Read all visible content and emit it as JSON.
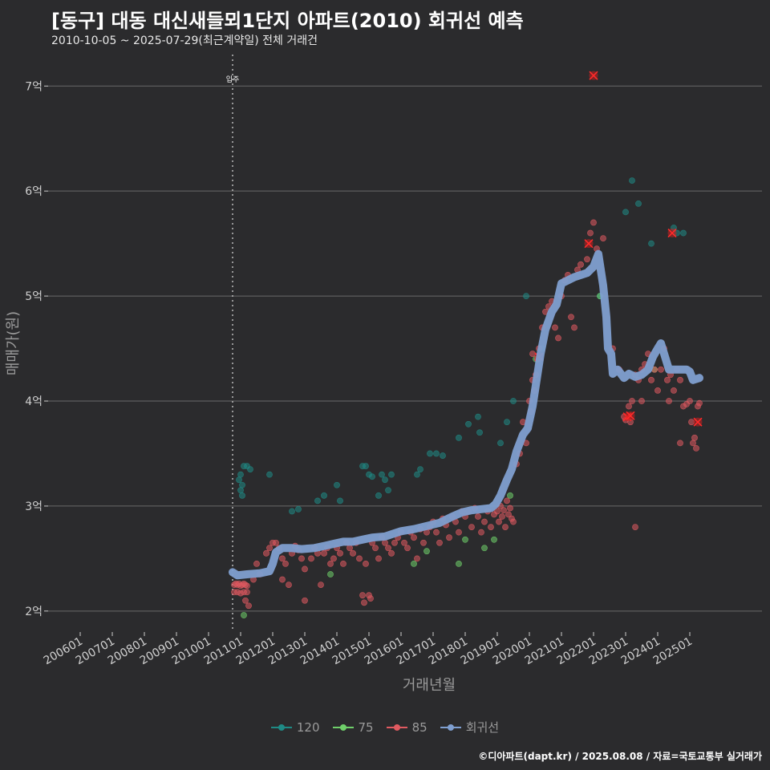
{
  "header": {
    "title": "[동구] 대동 대신새들뫼1단지 아파트(2010) 회귀선 예측",
    "subtitle": "2010-10-05 ~ 2025-07-29(최근계약일) 전체 거래건"
  },
  "caption": "©디아파트(dapt.kr) / 2025.08.08 / 자료=국토교통부 실거래가",
  "colors": {
    "background": "#2b2b2d",
    "grid": "#6a6a6a",
    "s120": "#1f8a85",
    "s75": "#6fcf6a",
    "s85": "#e05a60",
    "regression": "#7f9fd0",
    "highlight": "#cc1f1f"
  },
  "chart_data": {
    "type": "scatter",
    "title": "[동구] 대동 대신새들뫼1단지 아파트(2010) 회귀선 예측",
    "xlabel": "거래년월",
    "ylabel": "매매가(원)",
    "ylim": [
      1.8,
      7.3
    ],
    "y_ticks": [
      2,
      3,
      4,
      5,
      6,
      7
    ],
    "y_tick_labels": [
      "2억",
      "3억",
      "4억",
      "5억",
      "6억",
      "7억"
    ],
    "x_ticks": [
      "200601",
      "200701",
      "200801",
      "200901",
      "201001",
      "201101",
      "201201",
      "201301",
      "201401",
      "201501",
      "201601",
      "201701",
      "201801",
      "201901",
      "202001",
      "202101",
      "202201",
      "202301",
      "202401",
      "202501"
    ],
    "x_range": [
      2005.0,
      2027.25
    ],
    "annotation": {
      "label": "입주",
      "x": 2010.75
    },
    "legend": [
      "120",
      "75",
      "85",
      "회귀선"
    ],
    "series": [
      {
        "name": "120",
        "points": [
          [
            2010.95,
            3.25
          ],
          [
            2011.0,
            3.3
          ],
          [
            2011.05,
            3.2
          ],
          [
            2011.1,
            3.38
          ],
          [
            2011.2,
            3.38
          ],
          [
            2011.3,
            3.35
          ],
          [
            2011.0,
            3.15
          ],
          [
            2011.05,
            3.1
          ],
          [
            2011.9,
            3.3
          ],
          [
            2012.6,
            2.95
          ],
          [
            2012.8,
            2.97
          ],
          [
            2013.4,
            3.05
          ],
          [
            2013.6,
            3.1
          ],
          [
            2014.0,
            3.2
          ],
          [
            2014.1,
            3.05
          ],
          [
            2014.8,
            3.38
          ],
          [
            2014.9,
            3.38
          ],
          [
            2015.0,
            3.3
          ],
          [
            2015.1,
            3.28
          ],
          [
            2015.3,
            3.1
          ],
          [
            2015.4,
            3.3
          ],
          [
            2015.5,
            3.25
          ],
          [
            2015.6,
            3.15
          ],
          [
            2015.7,
            3.3
          ],
          [
            2016.5,
            3.3
          ],
          [
            2016.6,
            3.35
          ],
          [
            2016.9,
            3.5
          ],
          [
            2017.1,
            3.5
          ],
          [
            2017.3,
            3.48
          ],
          [
            2017.8,
            3.65
          ],
          [
            2018.1,
            3.78
          ],
          [
            2018.4,
            3.85
          ],
          [
            2018.45,
            3.7
          ],
          [
            2019.1,
            3.6
          ],
          [
            2019.3,
            3.8
          ],
          [
            2019.5,
            4.0
          ],
          [
            2019.9,
            5.0
          ],
          [
            2020.3,
            4.4
          ],
          [
            2020.4,
            4.5
          ],
          [
            2022.2,
            5.0
          ],
          [
            2023.0,
            5.8
          ],
          [
            2023.2,
            6.1
          ],
          [
            2023.4,
            5.88
          ],
          [
            2023.8,
            5.5
          ],
          [
            2024.5,
            5.65
          ],
          [
            2024.6,
            5.6
          ],
          [
            2024.8,
            5.6
          ]
        ]
      },
      {
        "name": "75",
        "points": [
          [
            2011.1,
            1.96
          ],
          [
            2013.8,
            2.35
          ],
          [
            2016.4,
            2.45
          ],
          [
            2016.8,
            2.57
          ],
          [
            2017.8,
            2.45
          ],
          [
            2018.0,
            2.68
          ],
          [
            2018.6,
            2.6
          ],
          [
            2018.9,
            2.68
          ],
          [
            2019.4,
            3.1
          ],
          [
            2020.2,
            4.4
          ],
          [
            2022.2,
            5.0
          ],
          [
            2023.9,
            4.3
          ]
        ]
      },
      {
        "name": "85",
        "points": [
          [
            2010.8,
            2.25
          ],
          [
            2010.85,
            2.26
          ],
          [
            2010.9,
            2.25
          ],
          [
            2010.95,
            2.26
          ],
          [
            2011.0,
            2.24
          ],
          [
            2011.05,
            2.25
          ],
          [
            2011.1,
            2.26
          ],
          [
            2011.15,
            2.25
          ],
          [
            2011.2,
            2.24
          ],
          [
            2010.8,
            2.18
          ],
          [
            2010.9,
            2.18
          ],
          [
            2011.0,
            2.17
          ],
          [
            2011.1,
            2.18
          ],
          [
            2011.2,
            2.18
          ],
          [
            2011.15,
            2.1
          ],
          [
            2011.25,
            2.05
          ],
          [
            2011.4,
            2.3
          ],
          [
            2011.6,
            2.35
          ],
          [
            2011.5,
            2.45
          ],
          [
            2011.8,
            2.55
          ],
          [
            2011.9,
            2.6
          ],
          [
            2012.0,
            2.65
          ],
          [
            2012.1,
            2.65
          ],
          [
            2012.2,
            2.6
          ],
          [
            2012.3,
            2.5
          ],
          [
            2012.4,
            2.45
          ],
          [
            2012.3,
            2.3
          ],
          [
            2012.5,
            2.25
          ],
          [
            2012.6,
            2.55
          ],
          [
            2012.7,
            2.62
          ],
          [
            2012.8,
            2.58
          ],
          [
            2012.9,
            2.5
          ],
          [
            2013.0,
            2.4
          ],
          [
            2013.0,
            2.1
          ],
          [
            2013.2,
            2.5
          ],
          [
            2013.3,
            2.6
          ],
          [
            2013.4,
            2.55
          ],
          [
            2013.5,
            2.25
          ],
          [
            2013.6,
            2.55
          ],
          [
            2013.7,
            2.6
          ],
          [
            2013.8,
            2.45
          ],
          [
            2013.9,
            2.5
          ],
          [
            2014.0,
            2.6
          ],
          [
            2014.1,
            2.55
          ],
          [
            2014.2,
            2.45
          ],
          [
            2014.3,
            2.65
          ],
          [
            2014.4,
            2.6
          ],
          [
            2014.5,
            2.55
          ],
          [
            2014.6,
            2.65
          ],
          [
            2014.7,
            2.5
          ],
          [
            2014.8,
            2.15
          ],
          [
            2014.85,
            2.08
          ],
          [
            2014.9,
            2.45
          ],
          [
            2015.0,
            2.15
          ],
          [
            2015.05,
            2.12
          ],
          [
            2015.1,
            2.65
          ],
          [
            2015.2,
            2.6
          ],
          [
            2015.3,
            2.5
          ],
          [
            2015.4,
            2.7
          ],
          [
            2015.5,
            2.65
          ],
          [
            2015.6,
            2.6
          ],
          [
            2015.7,
            2.55
          ],
          [
            2015.8,
            2.65
          ],
          [
            2015.9,
            2.7
          ],
          [
            2016.0,
            2.75
          ],
          [
            2016.1,
            2.65
          ],
          [
            2016.2,
            2.6
          ],
          [
            2016.3,
            2.75
          ],
          [
            2016.4,
            2.7
          ],
          [
            2016.5,
            2.5
          ],
          [
            2016.6,
            2.78
          ],
          [
            2016.7,
            2.65
          ],
          [
            2016.8,
            2.75
          ],
          [
            2016.9,
            2.8
          ],
          [
            2017.0,
            2.85
          ],
          [
            2017.1,
            2.75
          ],
          [
            2017.2,
            2.65
          ],
          [
            2017.3,
            2.88
          ],
          [
            2017.4,
            2.82
          ],
          [
            2017.5,
            2.7
          ],
          [
            2017.6,
            2.9
          ],
          [
            2017.7,
            2.85
          ],
          [
            2017.8,
            2.75
          ],
          [
            2017.9,
            2.95
          ],
          [
            2018.0,
            2.9
          ],
          [
            2018.1,
            2.95
          ],
          [
            2018.2,
            2.8
          ],
          [
            2018.3,
            2.98
          ],
          [
            2018.4,
            2.9
          ],
          [
            2018.5,
            2.75
          ],
          [
            2018.6,
            2.85
          ],
          [
            2018.7,
            2.95
          ],
          [
            2018.8,
            2.8
          ],
          [
            2018.9,
            2.92
          ],
          [
            2019.0,
            2.95
          ],
          [
            2019.05,
            2.85
          ],
          [
            2019.1,
            3.0
          ],
          [
            2019.15,
            2.9
          ],
          [
            2019.2,
            2.96
          ],
          [
            2019.25,
            2.8
          ],
          [
            2019.3,
            3.05
          ],
          [
            2019.35,
            2.92
          ],
          [
            2019.4,
            2.98
          ],
          [
            2019.45,
            2.88
          ],
          [
            2019.5,
            2.85
          ],
          [
            2019.6,
            3.4
          ],
          [
            2019.7,
            3.5
          ],
          [
            2019.8,
            3.8
          ],
          [
            2019.9,
            3.6
          ],
          [
            2020.0,
            4.0
          ],
          [
            2020.05,
            3.9
          ],
          [
            2020.1,
            4.2
          ],
          [
            2020.15,
            4.1
          ],
          [
            2020.2,
            4.25
          ],
          [
            2020.25,
            4.4
          ],
          [
            2020.3,
            4.5
          ],
          [
            2020.4,
            4.7
          ],
          [
            2020.5,
            4.85
          ],
          [
            2020.6,
            4.9
          ],
          [
            2020.7,
            4.95
          ],
          [
            2020.8,
            4.7
          ],
          [
            2020.9,
            4.6
          ],
          [
            2021.0,
            5.0
          ],
          [
            2021.1,
            5.15
          ],
          [
            2021.2,
            5.2
          ],
          [
            2021.3,
            4.8
          ],
          [
            2021.4,
            4.7
          ],
          [
            2021.5,
            5.25
          ],
          [
            2021.6,
            5.3
          ],
          [
            2021.8,
            5.35
          ],
          [
            2021.9,
            5.6
          ],
          [
            2022.0,
            5.7
          ],
          [
            2022.1,
            5.45
          ],
          [
            2022.3,
            5.55
          ],
          [
            2022.6,
            4.5
          ],
          [
            2022.8,
            4.3
          ],
          [
            2022.95,
            3.85
          ],
          [
            2023.0,
            3.82
          ],
          [
            2023.1,
            3.95
          ],
          [
            2023.15,
            3.8
          ],
          [
            2023.2,
            4.0
          ],
          [
            2023.3,
            4.25
          ],
          [
            2023.4,
            4.2
          ],
          [
            2023.5,
            4.3
          ],
          [
            2023.6,
            4.35
          ],
          [
            2023.7,
            4.45
          ],
          [
            2023.8,
            4.2
          ],
          [
            2023.9,
            4.3
          ],
          [
            2024.0,
            4.1
          ],
          [
            2024.1,
            4.3
          ],
          [
            2024.2,
            4.5
          ],
          [
            2024.3,
            4.2
          ],
          [
            2024.35,
            4.0
          ],
          [
            2024.4,
            4.25
          ],
          [
            2024.5,
            4.1
          ],
          [
            2024.6,
            4.3
          ],
          [
            2024.7,
            4.2
          ],
          [
            2024.8,
            3.95
          ],
          [
            2024.9,
            3.97
          ],
          [
            2025.0,
            4.0
          ],
          [
            2025.05,
            3.8
          ],
          [
            2025.1,
            3.6
          ],
          [
            2025.15,
            3.65
          ],
          [
            2025.2,
            3.55
          ],
          [
            2025.25,
            3.95
          ],
          [
            2025.3,
            3.98
          ],
          [
            2023.3,
            2.8
          ],
          [
            2020.1,
            4.45
          ],
          [
            2023.5,
            4.0
          ],
          [
            2024.7,
            3.6
          ]
        ]
      }
    ],
    "highlight_points": [
      [
        2022.0,
        7.1
      ],
      [
        2021.85,
        5.5
      ],
      [
        2024.45,
        5.6
      ],
      [
        2023.05,
        3.85
      ],
      [
        2023.15,
        3.86
      ],
      [
        2025.25,
        3.8
      ],
      [
        2020.3,
        4.42
      ]
    ],
    "regression": {
      "name": "회귀선",
      "points": [
        [
          2010.75,
          2.37
        ],
        [
          2010.9,
          2.34
        ],
        [
          2011.2,
          2.35
        ],
        [
          2011.6,
          2.36
        ],
        [
          2011.9,
          2.38
        ],
        [
          2012.0,
          2.45
        ],
        [
          2012.1,
          2.56
        ],
        [
          2012.3,
          2.6
        ],
        [
          2012.6,
          2.6
        ],
        [
          2012.9,
          2.59
        ],
        [
          2013.3,
          2.6
        ],
        [
          2013.6,
          2.62
        ],
        [
          2013.9,
          2.64
        ],
        [
          2014.2,
          2.66
        ],
        [
          2014.5,
          2.66
        ],
        [
          2014.8,
          2.68
        ],
        [
          2015.1,
          2.7
        ],
        [
          2015.5,
          2.71
        ],
        [
          2015.8,
          2.74
        ],
        [
          2016.0,
          2.76
        ],
        [
          2016.4,
          2.78
        ],
        [
          2016.8,
          2.81
        ],
        [
          2017.2,
          2.84
        ],
        [
          2017.6,
          2.9
        ],
        [
          2017.9,
          2.94
        ],
        [
          2018.2,
          2.96
        ],
        [
          2018.5,
          2.97
        ],
        [
          2018.8,
          2.98
        ],
        [
          2018.95,
          3.02
        ],
        [
          2019.1,
          3.1
        ],
        [
          2019.3,
          3.25
        ],
        [
          2019.45,
          3.35
        ],
        [
          2019.6,
          3.52
        ],
        [
          2019.8,
          3.68
        ],
        [
          2019.95,
          3.74
        ],
        [
          2020.1,
          3.95
        ],
        [
          2020.2,
          4.15
        ],
        [
          2020.35,
          4.45
        ],
        [
          2020.5,
          4.68
        ],
        [
          2020.7,
          4.85
        ],
        [
          2020.85,
          4.92
        ],
        [
          2021.0,
          5.12
        ],
        [
          2021.2,
          5.15
        ],
        [
          2021.4,
          5.18
        ],
        [
          2021.6,
          5.2
        ],
        [
          2021.8,
          5.22
        ],
        [
          2022.0,
          5.28
        ],
        [
          2022.15,
          5.4
        ],
        [
          2022.3,
          5.1
        ],
        [
          2022.4,
          4.8
        ],
        [
          2022.45,
          4.5
        ],
        [
          2022.55,
          4.45
        ],
        [
          2022.6,
          4.26
        ],
        [
          2022.75,
          4.3
        ],
        [
          2022.95,
          4.22
        ],
        [
          2023.1,
          4.26
        ],
        [
          2023.3,
          4.23
        ],
        [
          2023.5,
          4.25
        ],
        [
          2023.7,
          4.3
        ],
        [
          2023.85,
          4.42
        ],
        [
          2024.0,
          4.5
        ],
        [
          2024.1,
          4.55
        ],
        [
          2024.2,
          4.45
        ],
        [
          2024.35,
          4.3
        ],
        [
          2024.55,
          4.3
        ],
        [
          2024.75,
          4.3
        ],
        [
          2024.9,
          4.3
        ],
        [
          2025.0,
          4.28
        ],
        [
          2025.1,
          4.2
        ],
        [
          2025.3,
          4.22
        ]
      ]
    }
  }
}
